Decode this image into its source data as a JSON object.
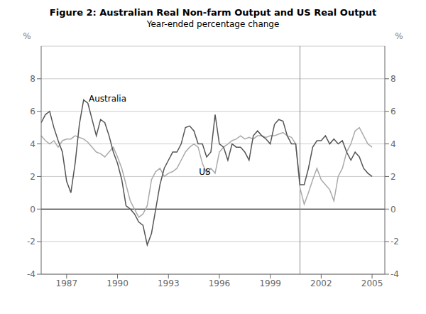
{
  "chart_data": {
    "type": "line",
    "title": "Figure 2: Australian Real Non-farm Output and US Real Output",
    "subtitle": "Year-ended percentage change",
    "ylabel": "%",
    "y2label": "%",
    "xlim": [
      1985.5,
      2005.75
    ],
    "xticks": [
      1987,
      1990,
      1993,
      1996,
      1999,
      2002,
      2005
    ],
    "ylim": [
      -4,
      10
    ],
    "yticks": [
      -4,
      -2,
      0,
      2,
      4,
      6,
      8
    ],
    "y2lim": [
      -4,
      10
    ],
    "y2ticks": [
      -4,
      -2,
      0,
      2,
      4,
      6,
      8
    ],
    "grid": true,
    "vlines": [
      2000.75
    ],
    "x": [
      1985.5,
      1985.75,
      1986.0,
      1986.25,
      1986.5,
      1986.75,
      1987.0,
      1987.25,
      1987.5,
      1987.75,
      1988.0,
      1988.25,
      1988.5,
      1988.75,
      1989.0,
      1989.25,
      1989.5,
      1989.75,
      1990.0,
      1990.25,
      1990.5,
      1990.75,
      1991.0,
      1991.25,
      1991.5,
      1991.75,
      1992.0,
      1992.25,
      1992.5,
      1992.75,
      1993.0,
      1993.25,
      1993.5,
      1993.75,
      1994.0,
      1994.25,
      1994.5,
      1994.75,
      1995.0,
      1995.25,
      1995.5,
      1995.75,
      1996.0,
      1996.25,
      1996.5,
      1996.75,
      1997.0,
      1997.25,
      1997.5,
      1997.75,
      1998.0,
      1998.25,
      1998.5,
      1998.75,
      1999.0,
      1999.25,
      1999.5,
      1999.75,
      2000.0,
      2000.25,
      2000.5,
      2000.75,
      2001.0,
      2001.25,
      2001.5,
      2001.75,
      2002.0,
      2002.25,
      2002.5,
      2002.75,
      2003.0,
      2003.25,
      2003.5,
      2003.75,
      2004.0,
      2004.25,
      2004.5,
      2004.75,
      2005.0
    ],
    "series": [
      {
        "name": "Australia",
        "color": "#555555",
        "values": [
          5.3,
          5.8,
          6.0,
          5.0,
          4.2,
          3.5,
          1.7,
          1.0,
          2.8,
          5.2,
          6.7,
          6.5,
          5.5,
          4.5,
          5.5,
          5.3,
          4.5,
          3.5,
          2.8,
          1.8,
          0.2,
          0.0,
          -0.3,
          -0.8,
          -1.0,
          -2.2,
          -1.5,
          0.0,
          1.5,
          2.5,
          3.0,
          3.5,
          3.5,
          4.0,
          5.0,
          5.1,
          4.8,
          4.0,
          4.0,
          3.2,
          3.5,
          5.8,
          4.0,
          3.8,
          3.0,
          4.0,
          3.8,
          3.8,
          3.5,
          3.0,
          4.5,
          4.8,
          4.5,
          4.3,
          4.0,
          5.2,
          5.5,
          5.4,
          4.5,
          4.0,
          4.0,
          1.5,
          1.5,
          2.5,
          3.8,
          4.2,
          4.2,
          4.5,
          4.0,
          4.3,
          4.0,
          4.2,
          3.5,
          3.0,
          3.5,
          3.2,
          2.5,
          2.2,
          2.0
        ]
      },
      {
        "name": "US",
        "color": "#aaaaaa",
        "values": [
          4.5,
          4.2,
          4.0,
          4.2,
          3.8,
          4.2,
          4.3,
          4.3,
          4.5,
          4.4,
          4.3,
          4.1,
          3.8,
          3.5,
          3.4,
          3.2,
          3.5,
          3.8,
          3.2,
          2.5,
          1.5,
          0.5,
          0.0,
          -0.5,
          -0.3,
          0.2,
          1.8,
          2.3,
          2.5,
          2.0,
          2.2,
          2.3,
          2.5,
          3.0,
          3.5,
          3.8,
          4.0,
          3.8,
          2.8,
          2.2,
          2.5,
          2.2,
          3.5,
          3.8,
          4.0,
          4.2,
          4.3,
          4.5,
          4.3,
          4.4,
          4.3,
          4.5,
          4.5,
          4.4,
          4.5,
          4.5,
          4.6,
          4.7,
          4.5,
          4.4,
          4.0,
          1.3,
          0.3,
          1.0,
          1.8,
          2.5,
          1.8,
          1.5,
          1.2,
          0.5,
          2.0,
          2.5,
          3.5,
          4.0,
          4.8,
          5.0,
          4.5,
          4.0,
          3.8
        ]
      }
    ],
    "annotations": [
      {
        "text": "Australia",
        "x": 1988.3,
        "y": 6.6
      },
      {
        "text": "US",
        "x": 1994.8,
        "y": 2.1
      }
    ]
  }
}
